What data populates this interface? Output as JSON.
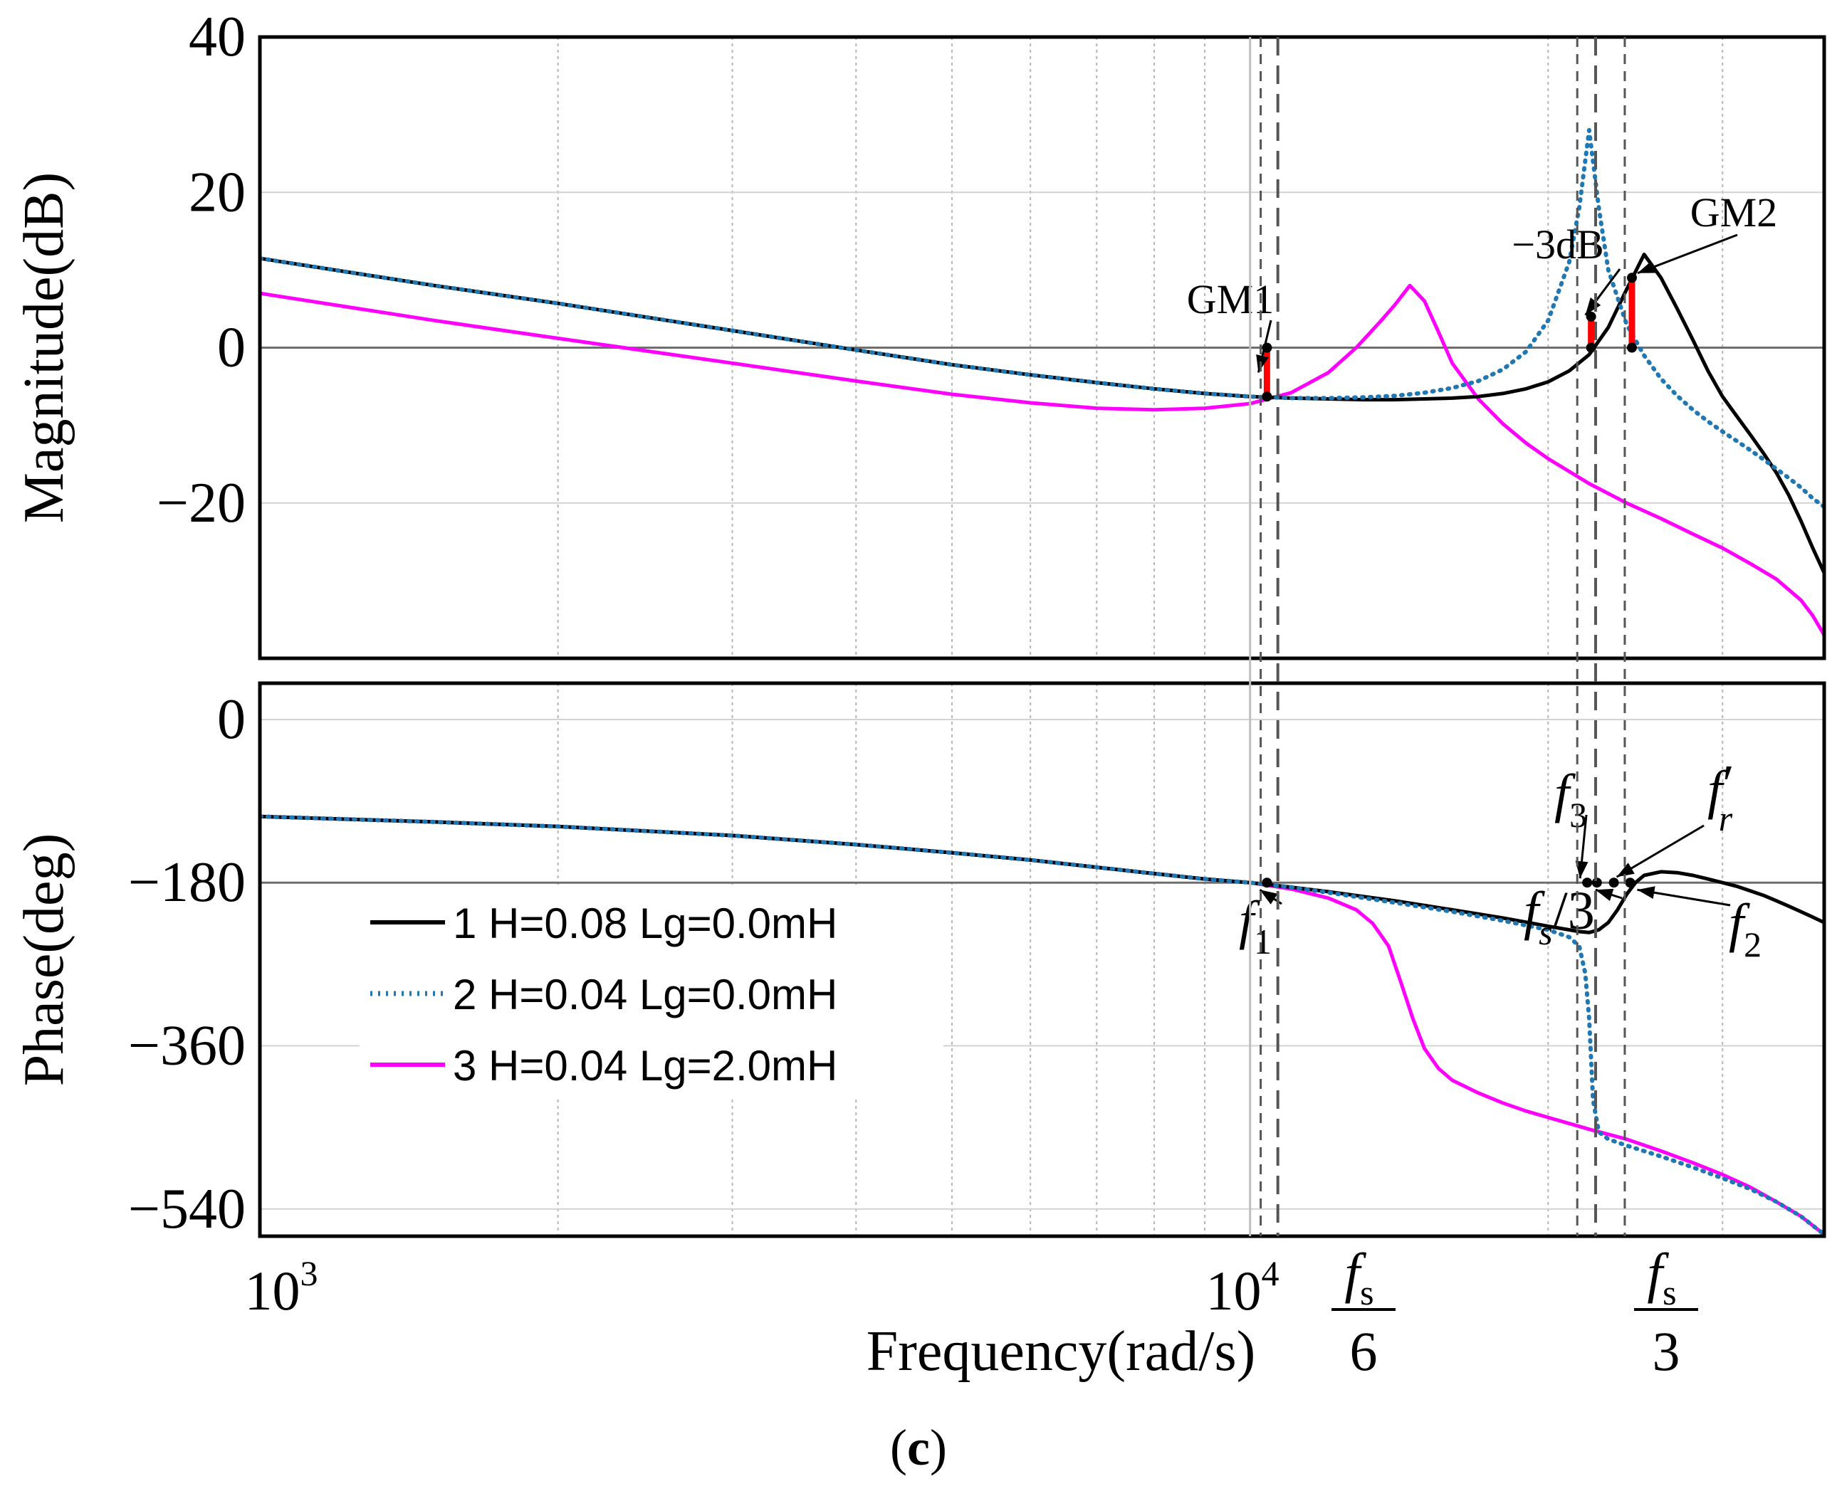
{
  "figure_label": "(c)",
  "figure_label_parts": {
    "open": "(",
    "letter": "c",
    "close": ")"
  },
  "colors": {
    "series_1": "#000000",
    "series_2": "#1f78b4",
    "series_3": "#ff00ff",
    "gain_margin": "#ff0000",
    "marker_line": "#555555",
    "grid": "#b4b4b4"
  },
  "chart_data": [
    {
      "type": "line",
      "name": "magnitude",
      "xscale": "log",
      "xlim": [
        1000,
        38000
      ],
      "ylim": [
        -40,
        40
      ],
      "ylabel": "Magnitude(dB)",
      "yticks": [
        "40",
        "20",
        "0",
        "−20"
      ],
      "ytick_values": [
        40,
        20,
        0,
        -20
      ],
      "series": [
        {
          "name": "1 H=0.08 Lg=0.0mH",
          "style": "solid",
          "x": [
            1000,
            1500,
            2000,
            3000,
            4000,
            5000,
            6000,
            7000,
            8000,
            9000,
            10000,
            11000,
            12000,
            13000,
            14000,
            15000,
            16000,
            17000,
            18000,
            19000,
            20000,
            21000,
            22000,
            23000,
            24000,
            25000,
            26000,
            27000,
            28000,
            29000,
            30000,
            31000,
            32000,
            33000,
            34000,
            35000,
            36000,
            37000,
            38000
          ],
          "y": [
            11.5,
            8.0,
            5.7,
            2.2,
            -0.3,
            -2.2,
            -3.5,
            -4.5,
            -5.3,
            -5.9,
            -6.3,
            -6.5,
            -6.6,
            -6.7,
            -6.7,
            -6.6,
            -6.5,
            -6.3,
            -5.9,
            -5.3,
            -4.4,
            -3.0,
            -0.9,
            2.6,
            7.5,
            12.0,
            9.0,
            5.0,
            1.0,
            -3.0,
            -6.3,
            -8.8,
            -11.2,
            -13.6,
            -16.1,
            -19.0,
            -22.3,
            -25.8,
            -29.0
          ]
        },
        {
          "name": "2 H=0.04 Lg=0.0mH",
          "style": "dotted",
          "x": [
            1000,
            1500,
            2000,
            3000,
            4000,
            5000,
            6000,
            7000,
            8000,
            9000,
            10000,
            11000,
            12000,
            13000,
            14000,
            15000,
            16000,
            17000,
            18000,
            19000,
            20000,
            21000,
            21500,
            22000,
            22500,
            23000,
            24000,
            25000,
            26000,
            27000,
            28000,
            29000,
            30000,
            31000,
            32000,
            33000,
            34000,
            35000,
            36000,
            37000,
            38000
          ],
          "y": [
            11.5,
            8.0,
            5.7,
            2.2,
            -0.3,
            -2.2,
            -3.5,
            -4.5,
            -5.3,
            -5.9,
            -6.3,
            -6.5,
            -6.5,
            -6.4,
            -6.2,
            -5.8,
            -5.2,
            -4.3,
            -2.8,
            -0.5,
            3.5,
            11.0,
            18.0,
            28.0,
            18.0,
            10.0,
            3.0,
            -1.0,
            -4.0,
            -6.2,
            -8.0,
            -9.5,
            -10.8,
            -12.0,
            -13.2,
            -14.4,
            -15.6,
            -16.8,
            -18.0,
            -19.4,
            -20.5
          ]
        },
        {
          "name": "3 H=0.04 Lg=2.0mH",
          "style": "solid",
          "x": [
            1000,
            1500,
            2000,
            3000,
            4000,
            5000,
            6000,
            7000,
            8000,
            9000,
            10000,
            11000,
            12000,
            12800,
            13500,
            14000,
            14500,
            15000,
            15500,
            16000,
            17000,
            18000,
            19000,
            20000,
            22000,
            24000,
            26000,
            28000,
            30000,
            32000,
            34000,
            36000,
            37000,
            38000
          ],
          "y": [
            7.0,
            3.5,
            1.2,
            -2.0,
            -4.3,
            -6.0,
            -7.1,
            -7.8,
            -8.0,
            -7.8,
            -7.2,
            -5.8,
            -3.2,
            0.0,
            3.2,
            5.5,
            8.0,
            6.0,
            2.0,
            -2.0,
            -6.6,
            -9.8,
            -12.3,
            -14.3,
            -17.5,
            -20.0,
            -22.0,
            -24.0,
            -25.8,
            -27.8,
            -29.8,
            -32.5,
            -34.5,
            -37.0
          ]
        }
      ],
      "annotations": [
        {
          "label": "GM1"
        },
        {
          "label": "−3dB"
        },
        {
          "label": "GM2"
        }
      ],
      "gain_margin_bars": [
        {
          "x": 10400,
          "y_from": 0,
          "y_to": -6.3
        },
        {
          "x": 22100,
          "y_from": 0,
          "y_to": 4.0
        },
        {
          "x": 24300,
          "y_from": 0,
          "y_to": 9.0
        }
      ]
    },
    {
      "type": "line",
      "name": "phase",
      "xscale": "log",
      "xlim": [
        1000,
        38000
      ],
      "ylim": [
        -570,
        40
      ],
      "ylabel": "Phase(deg)",
      "yticks": [
        "0",
        "−180",
        "−360",
        "−540"
      ],
      "ytick_values": [
        0,
        -180,
        -360,
        -540
      ],
      "xlabel": "Frequency(rad/s)",
      "xtick_base": "10",
      "xticks": [
        {
          "value": 1000,
          "exponent": "3"
        },
        {
          "value": 10000,
          "exponent": "4"
        }
      ],
      "series": [
        {
          "name": "1 H=0.08 Lg=0.0mH",
          "style": "solid",
          "x": [
            1000,
            1500,
            2000,
            3000,
            4000,
            5000,
            6000,
            7000,
            8000,
            9000,
            10000,
            11000,
            12000,
            14000,
            16000,
            18000,
            20000,
            21000,
            21500,
            22000,
            22500,
            23000,
            23500,
            24000,
            24500,
            25000,
            26000,
            27000,
            28000,
            29000,
            30000,
            31000,
            32000,
            33000,
            34000,
            35000,
            36000,
            37000,
            38000
          ],
          "y": [
            -107,
            -113,
            -118,
            -128,
            -138,
            -147,
            -155,
            -163,
            -170,
            -176,
            -180,
            -185,
            -190,
            -200,
            -210,
            -219,
            -228,
            -232,
            -234,
            -235,
            -232,
            -224,
            -210,
            -193,
            -180,
            -172,
            -168,
            -169,
            -172,
            -176,
            -180,
            -184,
            -189,
            -194,
            -200,
            -206,
            -212,
            -218,
            -224
          ]
        },
        {
          "name": "2 H=0.04 Lg=0.0mH",
          "style": "dotted",
          "x": [
            1000,
            1500,
            2000,
            3000,
            4000,
            5000,
            6000,
            7000,
            8000,
            9000,
            10000,
            11000,
            12000,
            14000,
            16000,
            18000,
            20000,
            21000,
            21500,
            21800,
            22000,
            22200,
            22500,
            23000,
            24000,
            26000,
            28000,
            30000,
            32000,
            34000,
            36000,
            38000
          ],
          "y": [
            -107,
            -113,
            -118,
            -128,
            -138,
            -147,
            -155,
            -163,
            -170,
            -176,
            -180,
            -185,
            -191,
            -202,
            -212,
            -222,
            -232,
            -240,
            -250,
            -280,
            -330,
            -420,
            -455,
            -463,
            -470,
            -482,
            -494,
            -506,
            -518,
            -532,
            -548,
            -568
          ]
        },
        {
          "name": "3 H=0.04 Lg=2.0mH",
          "style": "solid",
          "x": [
            1000,
            1500,
            2000,
            3000,
            4000,
            5000,
            6000,
            7000,
            8000,
            9000,
            10000,
            11000,
            12000,
            12800,
            13300,
            13800,
            14200,
            14600,
            15000,
            15500,
            16000,
            17000,
            18000,
            19000,
            20000,
            22000,
            24000,
            26000,
            28000,
            30000,
            32000,
            34000,
            36000,
            38000
          ],
          "y": [
            -107,
            -113,
            -118,
            -128,
            -138,
            -147,
            -155,
            -163,
            -170,
            -176,
            -180,
            -187,
            -197,
            -210,
            -225,
            -250,
            -290,
            -330,
            -363,
            -385,
            -398,
            -412,
            -423,
            -432,
            -439,
            -452,
            -463,
            -476,
            -489,
            -502,
            -516,
            -532,
            -548,
            -568
          ]
        }
      ],
      "markers": [
        {
          "x": 10400,
          "y": -180,
          "label": "f",
          "sub": "1",
          "prime": ""
        },
        {
          "x": 21900,
          "y": -180,
          "label": "f",
          "sub": "3",
          "prime": ""
        },
        {
          "x": 22400,
          "y": -180,
          "label": "f",
          "sub": "s",
          "suffix": "/3",
          "prime": ""
        },
        {
          "x": 23300,
          "y": -180,
          "label": "f",
          "sub": "r",
          "prime": "′"
        },
        {
          "x": 24200,
          "y": -180,
          "label": "f",
          "sub": "2",
          "prime": ""
        }
      ]
    }
  ],
  "legend": {
    "placement": "lower-left of phase plot",
    "entries": [
      {
        "series": 1,
        "label": "1 H=0.08 Lg=0.0mH"
      },
      {
        "series": 2,
        "label": "2 H=0.04 Lg=0.0mH"
      },
      {
        "series": 3,
        "label": "3 H=0.04 Lg=2.0mH"
      }
    ]
  },
  "frequency_markers": [
    {
      "name": "fs-over-6",
      "x": 10667,
      "numerator": "f",
      "numerator_sub": "s",
      "denominator": "6"
    },
    {
      "name": "fs-over-3",
      "x": 22333,
      "numerator": "f",
      "numerator_sub": "s",
      "denominator": "3"
    }
  ],
  "marker_lines_x": [
    10000,
    10250,
    10667,
    21400,
    22333,
    23900
  ]
}
